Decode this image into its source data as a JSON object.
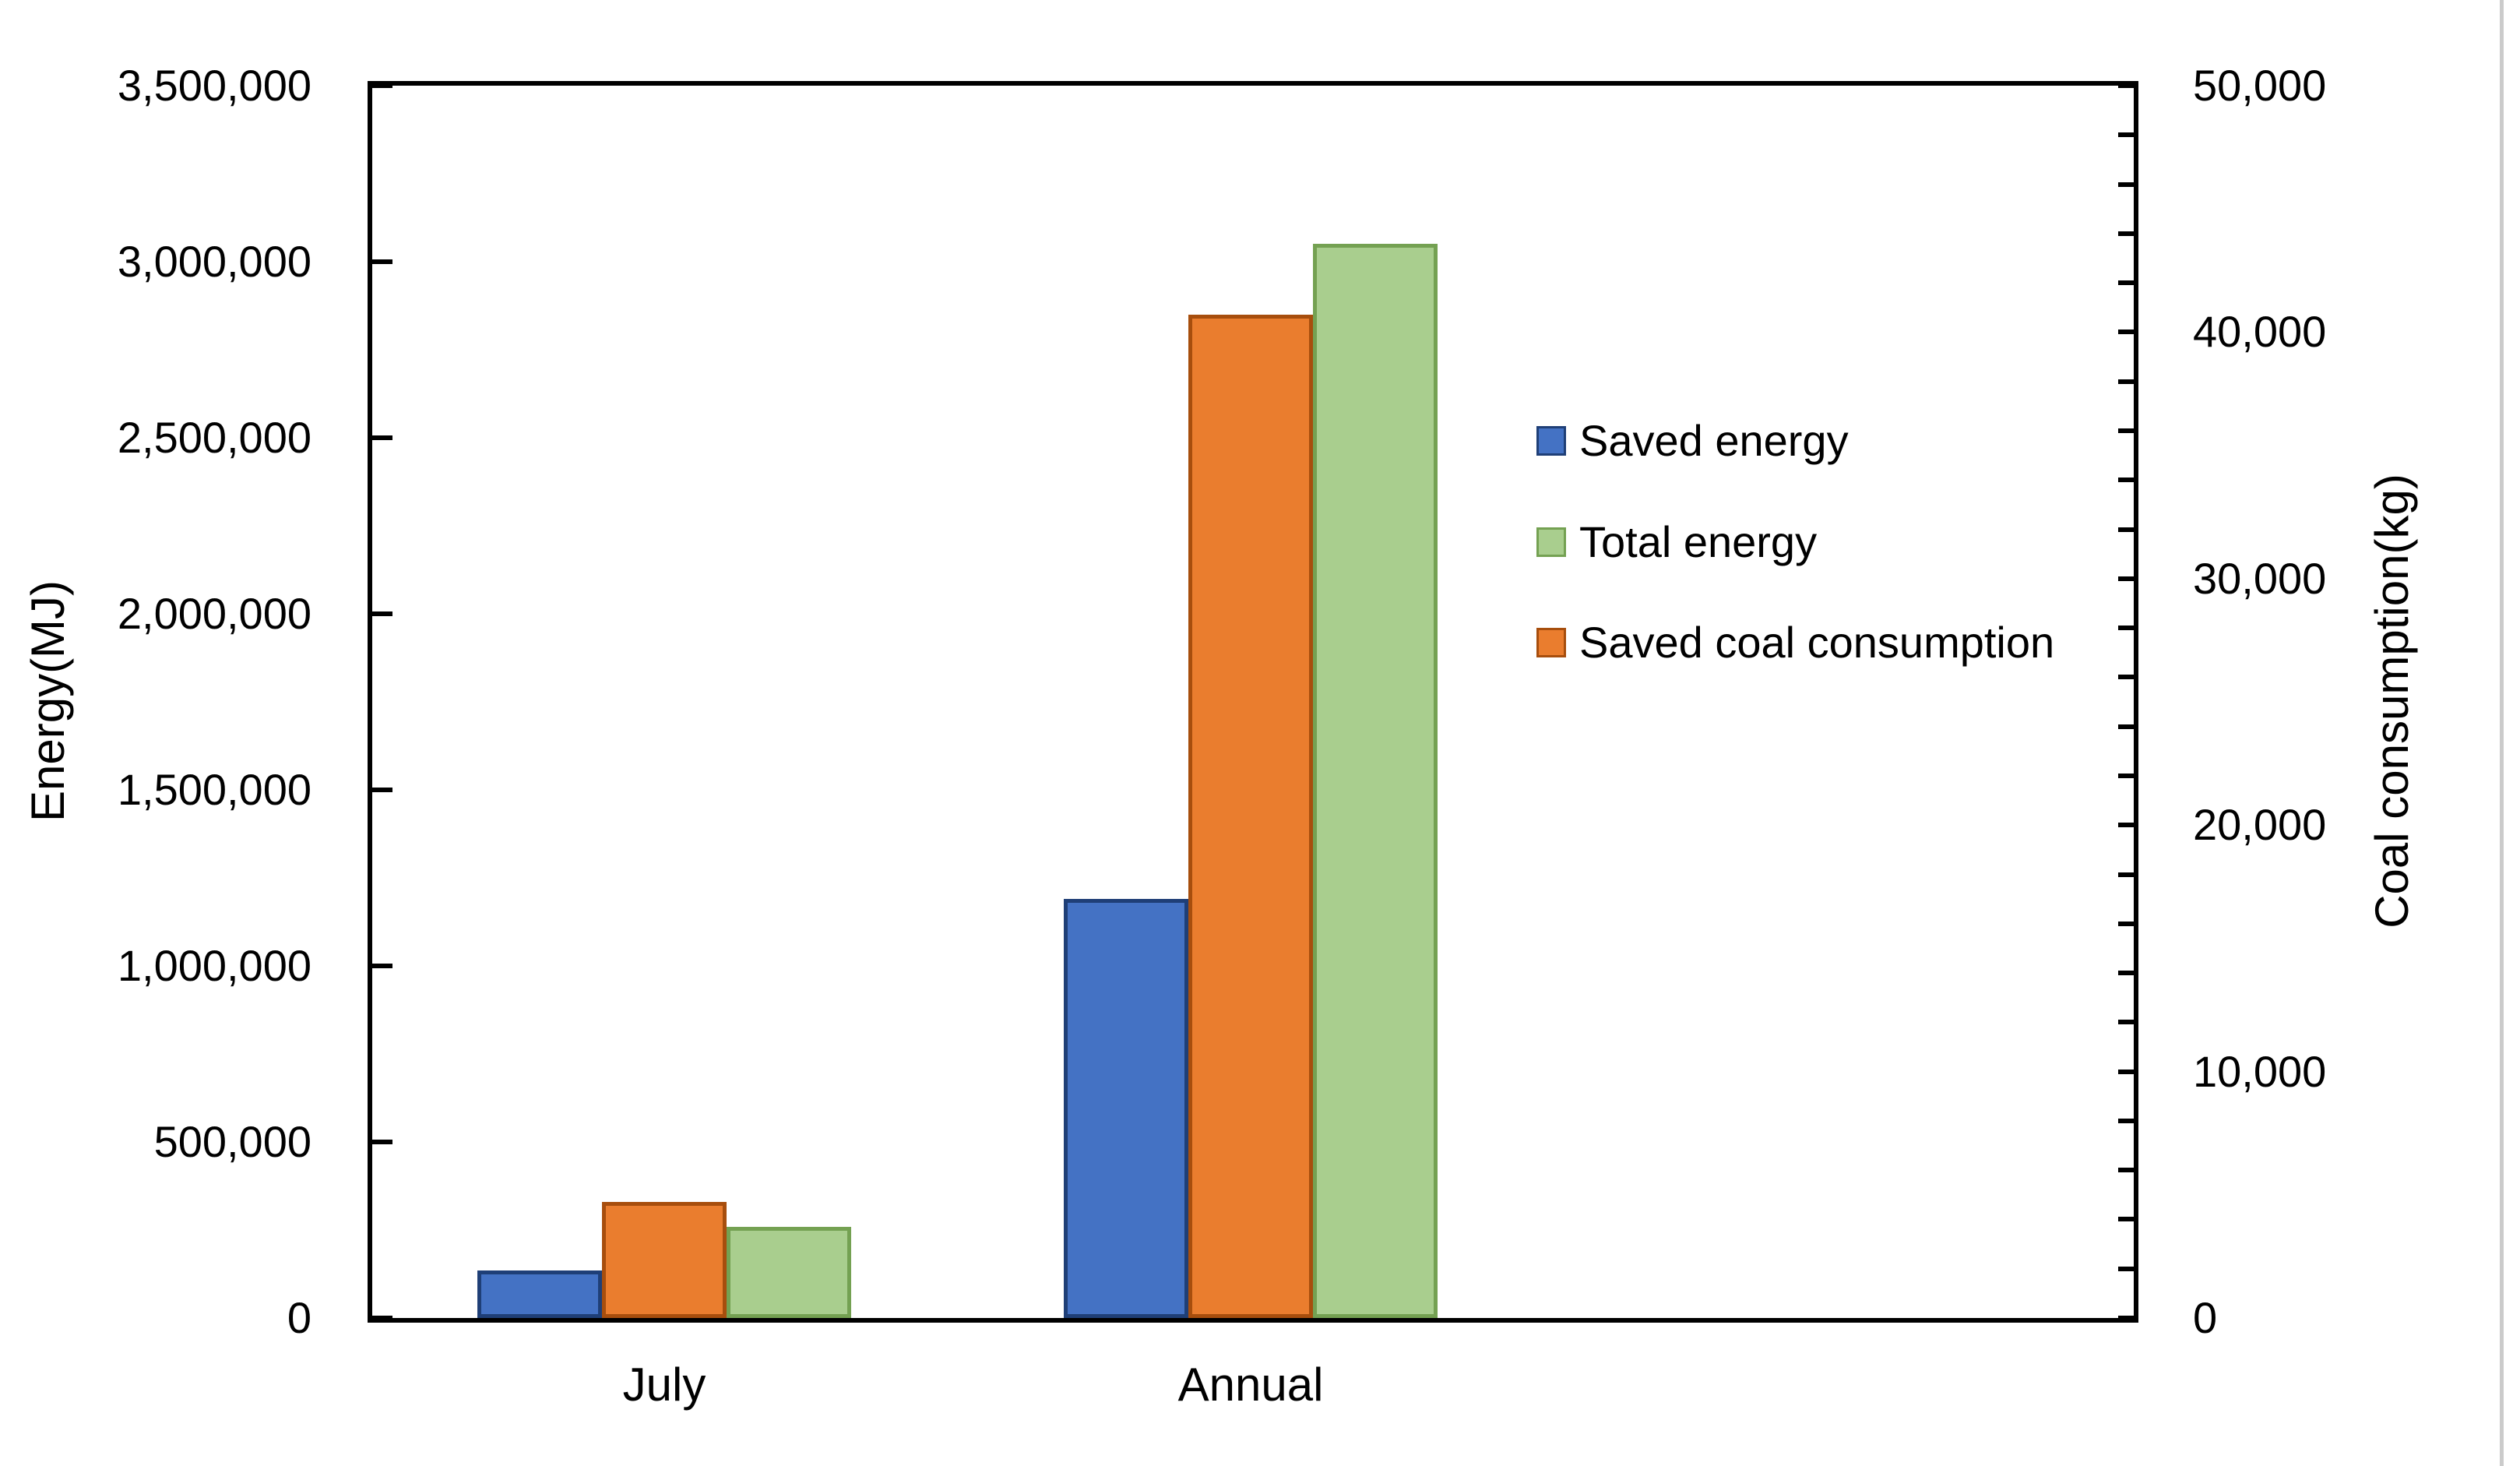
{
  "chart_data": {
    "type": "bar",
    "title": "",
    "categories": [
      "July",
      "Annual"
    ],
    "series": [
      {
        "name": "Saved energy",
        "axis": "left",
        "values": [
          135000,
          1190000
        ],
        "color": "#4472C4",
        "border_color": "#1F3F77"
      },
      {
        "name": "Saved coal consumption",
        "axis": "right",
        "values": [
          4700,
          40700
        ],
        "color": "#EA7D2E",
        "border_color": "#A74E0D"
      },
      {
        "name": "Total energy",
        "axis": "left",
        "values": [
          260000,
          3050000
        ],
        "color": "#A9CE8E",
        "border_color": "#74A152"
      }
    ],
    "legend": [
      {
        "label": "Saved energy",
        "color": "#4472C4",
        "border_color": "#1F3F77"
      },
      {
        "label": "Total energy",
        "color": "#A9CE8E",
        "border_color": "#74A152"
      },
      {
        "label": "Saved coal consumption",
        "color": "#EA7D2E",
        "border_color": "#A74E0D"
      }
    ],
    "legend_position": "inside-right",
    "grid": false,
    "y_left": {
      "label": "Energy(MJ)",
      "min": 0,
      "max": 3500000,
      "step": 500000,
      "tick_labels": [
        "3,500,000",
        "3,000,000",
        "2,500,000",
        "2,000,000",
        "1,500,000",
        "1,000,000",
        "500,000",
        "0"
      ]
    },
    "y_right": {
      "label": "Coal consumption(kg)",
      "min": 0,
      "max": 50000,
      "step": 10000,
      "minor_step": 2000,
      "tick_labels": [
        "50,000",
        "40,000",
        "30,000",
        "20,000",
        "10,000",
        "0"
      ]
    }
  }
}
